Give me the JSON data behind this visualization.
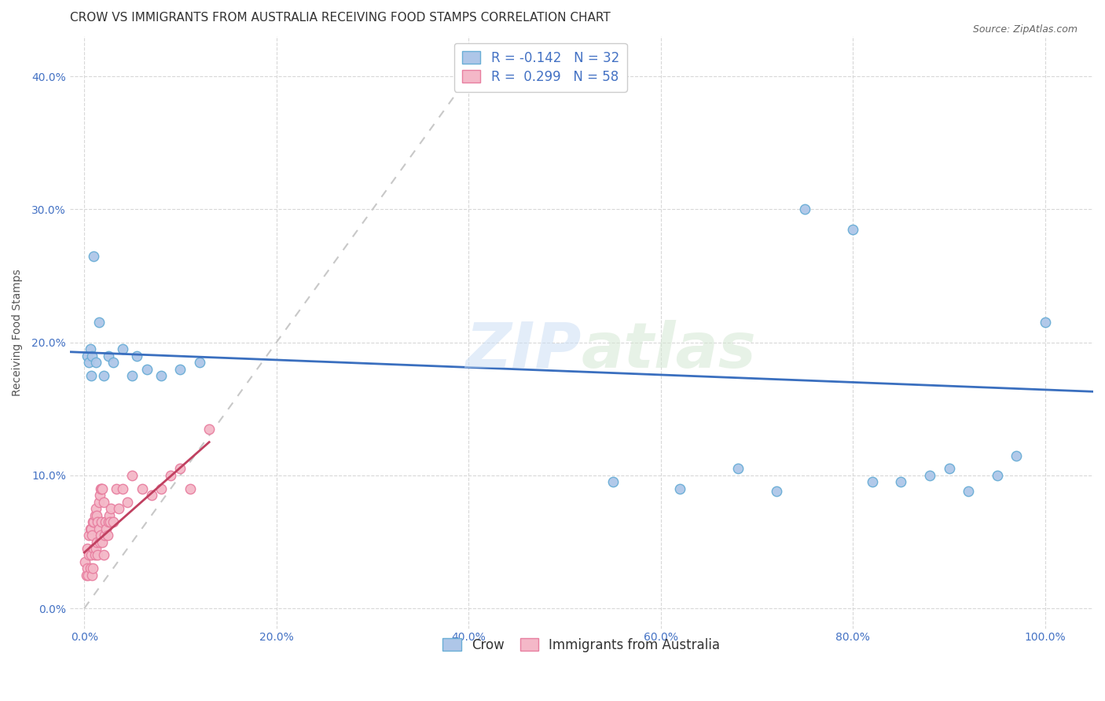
{
  "title": "CROW VS IMMIGRANTS FROM AUSTRALIA RECEIVING FOOD STAMPS CORRELATION CHART",
  "source": "Source: ZipAtlas.com",
  "xlabel_ticks": [
    "0.0%",
    "20.0%",
    "40.0%",
    "60.0%",
    "80.0%",
    "100.0%"
  ],
  "xlabel_tick_vals": [
    0.0,
    0.2,
    0.4,
    0.6,
    0.8,
    1.0
  ],
  "ylabel": "Receiving Food Stamps",
  "ylabel_ticks": [
    "0.0%",
    "10.0%",
    "20.0%",
    "30.0%",
    "40.0%"
  ],
  "ylabel_tick_vals": [
    0.0,
    0.1,
    0.2,
    0.3,
    0.4
  ],
  "crow_color": "#aec6e8",
  "crow_edge_color": "#6aaed6",
  "imm_color": "#f4b8c8",
  "imm_edge_color": "#e87fa0",
  "crow_R": -0.142,
  "crow_N": 32,
  "imm_R": 0.299,
  "imm_N": 58,
  "crow_line_color": "#3a6fbf",
  "imm_line_color": "#c04060",
  "diag_line_color": "#c8c8c8",
  "crow_scatter_x": [
    0.003,
    0.005,
    0.006,
    0.007,
    0.008,
    0.01,
    0.012,
    0.015,
    0.02,
    0.025,
    0.03,
    0.04,
    0.05,
    0.055,
    0.065,
    0.08,
    0.1,
    0.12,
    0.55,
    0.62,
    0.68,
    0.72,
    0.75,
    0.8,
    0.82,
    0.85,
    0.88,
    0.9,
    0.92,
    0.95,
    0.97,
    1.0
  ],
  "crow_scatter_y": [
    0.19,
    0.185,
    0.195,
    0.175,
    0.19,
    0.265,
    0.185,
    0.215,
    0.175,
    0.19,
    0.185,
    0.195,
    0.175,
    0.19,
    0.18,
    0.175,
    0.18,
    0.185,
    0.095,
    0.09,
    0.105,
    0.088,
    0.3,
    0.285,
    0.095,
    0.095,
    0.1,
    0.105,
    0.088,
    0.1,
    0.115,
    0.215
  ],
  "imm_scatter_x": [
    0.001,
    0.002,
    0.003,
    0.003,
    0.004,
    0.005,
    0.005,
    0.006,
    0.006,
    0.007,
    0.007,
    0.008,
    0.008,
    0.009,
    0.009,
    0.01,
    0.01,
    0.011,
    0.011,
    0.012,
    0.012,
    0.013,
    0.013,
    0.014,
    0.014,
    0.015,
    0.015,
    0.016,
    0.016,
    0.017,
    0.017,
    0.018,
    0.018,
    0.019,
    0.019,
    0.02,
    0.02,
    0.021,
    0.022,
    0.023,
    0.024,
    0.025,
    0.026,
    0.027,
    0.028,
    0.03,
    0.033,
    0.036,
    0.04,
    0.045,
    0.05,
    0.06,
    0.07,
    0.08,
    0.09,
    0.1,
    0.11,
    0.13
  ],
  "imm_scatter_y": [
    0.035,
    0.025,
    0.03,
    0.045,
    0.025,
    0.04,
    0.055,
    0.03,
    0.06,
    0.04,
    0.06,
    0.025,
    0.055,
    0.03,
    0.065,
    0.045,
    0.065,
    0.04,
    0.07,
    0.045,
    0.075,
    0.05,
    0.07,
    0.04,
    0.065,
    0.06,
    0.08,
    0.05,
    0.085,
    0.055,
    0.09,
    0.065,
    0.09,
    0.05,
    0.09,
    0.04,
    0.08,
    0.055,
    0.065,
    0.06,
    0.055,
    0.065,
    0.07,
    0.065,
    0.075,
    0.065,
    0.09,
    0.075,
    0.09,
    0.08,
    0.1,
    0.09,
    0.085,
    0.09,
    0.1,
    0.105,
    0.09,
    0.135
  ],
  "crow_line_x": [
    -0.02,
    1.05
  ],
  "crow_line_y": [
    0.193,
    0.163
  ],
  "imm_line_x": [
    0.0,
    0.13
  ],
  "imm_line_y": [
    0.042,
    0.125
  ],
  "diag_line_x": [
    0.0,
    0.42
  ],
  "diag_line_y": [
    0.0,
    0.42
  ],
  "xlim": [
    -0.015,
    1.05
  ],
  "ylim": [
    -0.015,
    0.43
  ],
  "marker_size": 80,
  "title_fontsize": 11,
  "axis_label_fontsize": 10,
  "tick_fontsize": 10,
  "legend_fontsize": 12,
  "source_fontsize": 9,
  "background_color": "#ffffff",
  "grid_color": "#d8d8d8"
}
